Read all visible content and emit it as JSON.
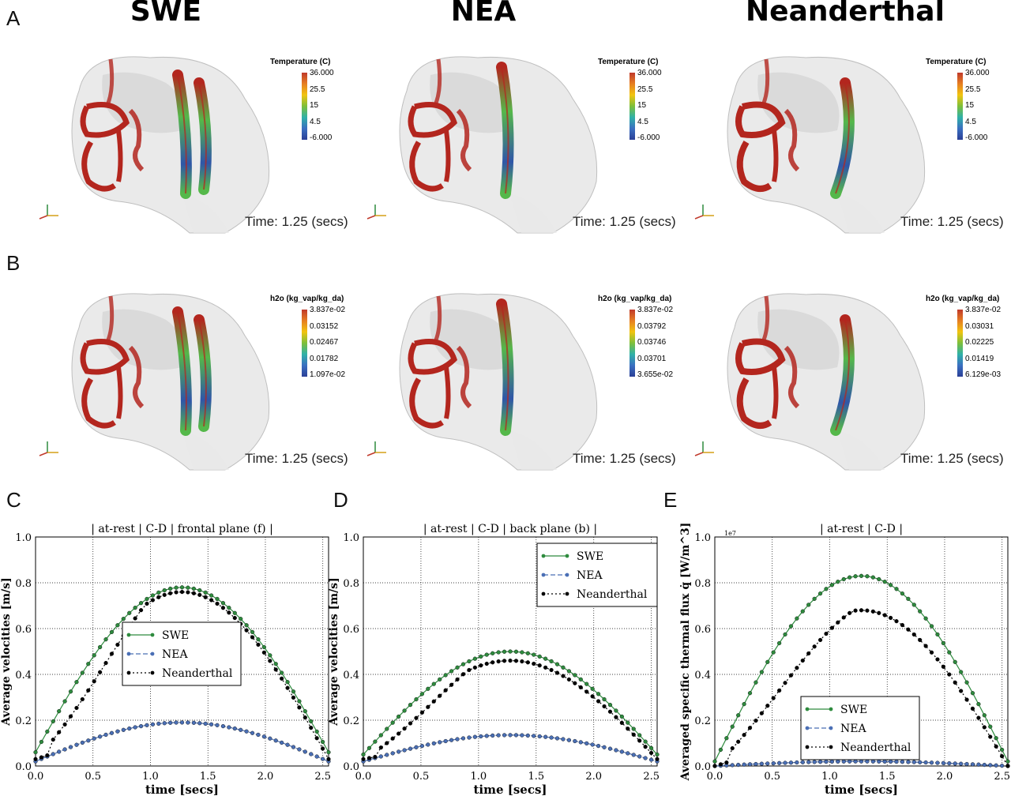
{
  "headers": {
    "col1": "SWE",
    "col2": "NEA",
    "col3": "Neanderthal",
    "letters": [
      "A",
      "B",
      "C",
      "D",
      "E"
    ]
  },
  "simulations": {
    "time_label": "Time: 1.25 (secs)",
    "row_a_colorbars": [
      {
        "title": "Temperature (C)",
        "ticks": [
          "36.000",
          "25.5",
          "15",
          "4.5",
          "-6.000"
        ]
      },
      {
        "title": "Temperature (C)",
        "ticks": [
          "36.000",
          "25.5",
          "15",
          "4.5",
          "-6.000"
        ]
      },
      {
        "title": "Temperature (C)",
        "ticks": [
          "36.000",
          "25.5",
          "15",
          "4.5",
          "-6.000"
        ]
      }
    ],
    "row_b_colorbars": [
      {
        "title": "h2o (kg_vap/kg_da)",
        "ticks": [
          "3.837e-02",
          "0.03152",
          "0.02467",
          "0.01782",
          "1.097e-02"
        ]
      },
      {
        "title": "h2o (kg_vap/kg_da)",
        "ticks": [
          "3.837e-02",
          "0.03792",
          "0.03746",
          "0.03701",
          "3.655e-02"
        ]
      },
      {
        "title": "h2o (kg_vap/kg_da)",
        "ticks": [
          "3.837e-02",
          "0.03031",
          "0.02225",
          "0.01419",
          "6.129e-03"
        ]
      }
    ],
    "colors": {
      "mucosa_red": "#b3261e",
      "skull_gray": "#d8d8d8",
      "cold_blue": "#2f56a8",
      "mid_green": "#55b84a"
    }
  },
  "chart_data": [
    {
      "type": "line",
      "title": "| at-rest | C-D | frontal plane (f) |",
      "xlabel": "time [secs]",
      "ylabel": "Average velocities [m/s]",
      "xlim": [
        0.0,
        2.55
      ],
      "ylim": [
        0.0,
        1.0
      ],
      "xticks": [
        "0.0",
        "0.5",
        "1.0",
        "1.5",
        "2.0",
        "2.5"
      ],
      "yticks": [
        "0.0",
        "0.2",
        "0.4",
        "0.6",
        "0.8",
        "1.0"
      ],
      "grid": true,
      "legend": "center",
      "series": [
        {
          "name": "SWE",
          "peak": 0.78,
          "base": 0.06,
          "rise": 0.0,
          "color": "#2e8b3e",
          "dash": "",
          "marker": "#2e8b3e"
        },
        {
          "name": "NEA",
          "peak": 0.19,
          "base": 0.02,
          "rise": 0.0,
          "color": "#4a6fb5",
          "dash": "6,3",
          "marker": "#4a6fb5"
        },
        {
          "name": "Neanderthal",
          "peak": 0.76,
          "base": 0.03,
          "rise": 0.35,
          "color": "#000000",
          "dash": "2,3",
          "marker": "#000000"
        }
      ]
    },
    {
      "type": "line",
      "title": "| at-rest | C-D | back plane (b) |",
      "xlabel": "time [secs]",
      "ylabel": "Average velocities [m/s]",
      "xlim": [
        0.0,
        2.55
      ],
      "ylim": [
        0.0,
        1.0
      ],
      "xticks": [
        "0.0",
        "0.5",
        "1.0",
        "1.5",
        "2.0",
        "2.5"
      ],
      "yticks": [
        "0.0",
        "0.2",
        "0.4",
        "0.6",
        "0.8",
        "1.0"
      ],
      "grid": true,
      "legend": "top-right",
      "series": [
        {
          "name": "SWE",
          "peak": 0.5,
          "base": 0.05,
          "rise": 0.0,
          "color": "#2e8b3e",
          "dash": "",
          "marker": "#2e8b3e"
        },
        {
          "name": "NEA",
          "peak": 0.135,
          "base": 0.02,
          "rise": 0.0,
          "color": "#4a6fb5",
          "dash": "6,3",
          "marker": "#4a6fb5"
        },
        {
          "name": "Neanderthal",
          "peak": 0.46,
          "base": 0.03,
          "rise": 0.3,
          "color": "#000000",
          "dash": "2,3",
          "marker": "#000000"
        }
      ]
    },
    {
      "type": "line",
      "title": "| at-rest | C-D |",
      "xlabel": "time [secs]",
      "ylabel": "Averaged specific thermal flux q̇ [W/m^3]",
      "scale_note": "1e7",
      "xlim": [
        0.0,
        2.55
      ],
      "ylim": [
        0.0,
        1.0
      ],
      "xticks": [
        "0.0",
        "0.5",
        "1.0",
        "1.5",
        "2.0",
        "2.5"
      ],
      "yticks": [
        "0.0",
        "0.2",
        "0.4",
        "0.6",
        "0.8",
        "1.0"
      ],
      "grid": true,
      "legend": "lower-center",
      "series": [
        {
          "name": "SWE",
          "peak": 0.83,
          "base": 0.02,
          "rise": 0.0,
          "color": "#2e8b3e",
          "dash": "",
          "marker": "#2e8b3e"
        },
        {
          "name": "NEA",
          "peak": 0.02,
          "base": 0.0,
          "rise": 0.0,
          "color": "#4a6fb5",
          "dash": "6,3",
          "marker": "#4a6fb5"
        },
        {
          "name": "Neanderthal",
          "peak": 0.68,
          "base": 0.0,
          "rise": 0.6,
          "color": "#000000",
          "dash": "2,3",
          "marker": "#000000"
        }
      ]
    }
  ]
}
